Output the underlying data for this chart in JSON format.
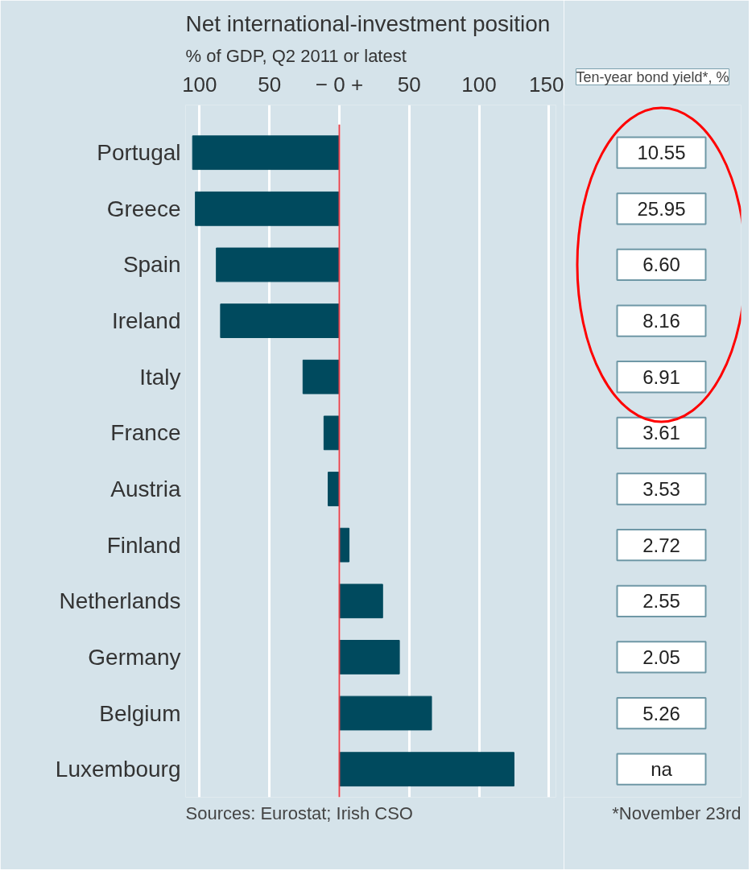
{
  "chart_data": {
    "type": "bar",
    "orientation": "horizontal",
    "title": "Net international-investment position",
    "subtitle": "% of GDP, Q2 2011 or latest",
    "categories": [
      "Portugal",
      "Greece",
      "Spain",
      "Ireland",
      "Italy",
      "France",
      "Austria",
      "Finland",
      "Netherlands",
      "Germany",
      "Belgium",
      "Luxembourg"
    ],
    "values": [
      -105,
      -103,
      -88,
      -85,
      -26,
      -11,
      -8,
      7,
      31,
      43,
      66,
      125
    ],
    "color": "#004a5e",
    "xlim": [
      -110,
      155
    ],
    "xticks": [
      {
        "value": -100,
        "label": "100"
      },
      {
        "value": -50,
        "label": "50"
      },
      {
        "value": 0,
        "label": "− 0 +"
      },
      50,
      100,
      150
    ],
    "grid": "x",
    "ref_lines": [
      {
        "axis": "x",
        "value": 0,
        "color": "#e0414c"
      }
    ],
    "annotations": [
      "Ten-year bond yield*, %",
      "10.55",
      "25.95",
      "6.60",
      "8.16",
      "6.91",
      "3.61",
      "3.53",
      "2.72",
      "2.55",
      "2.05",
      "5.26",
      "na",
      "Sources: Eurostat; Irish CSO",
      "*November 23rd"
    ]
  }
}
